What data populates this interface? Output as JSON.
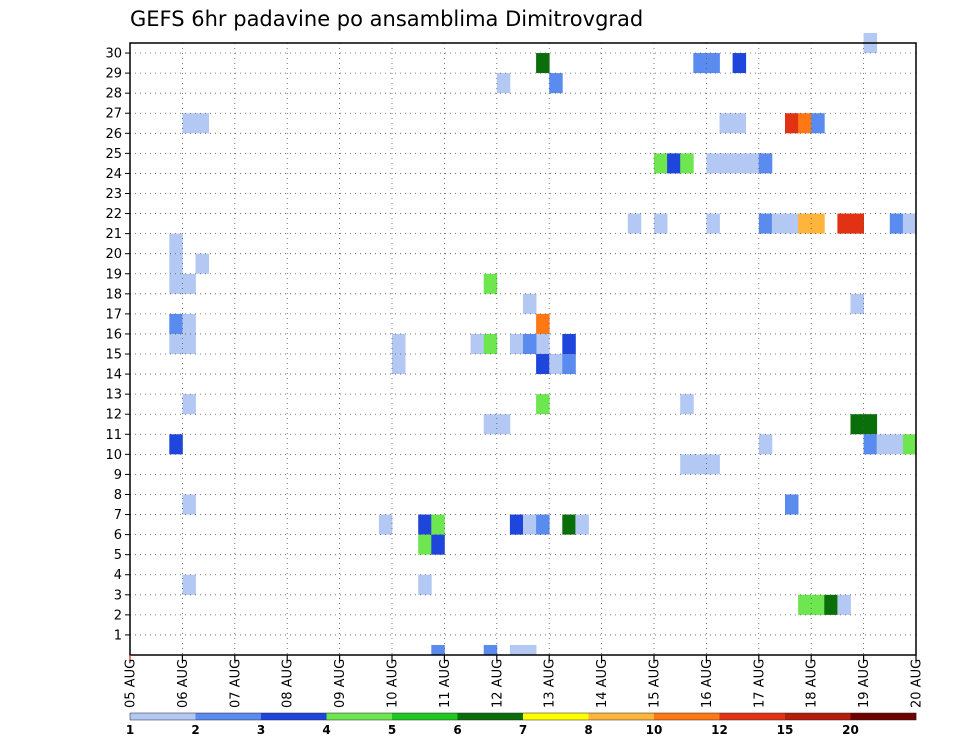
{
  "chart_data": {
    "type": "heatmap",
    "title": "GEFS 6hr padavine po ansamblima Dimitrovgrad",
    "xlabel": "",
    "ylabel": "",
    "x_ticks": [
      "05 AUG",
      "06 AUG",
      "07 AUG",
      "08 AUG",
      "09 AUG",
      "10 AUG",
      "11 AUG",
      "12 AUG",
      "13 AUG",
      "14 AUG",
      "15 AUG",
      "16 AUG",
      "17 AUG",
      "18 AUG",
      "19 AUG",
      "20 AUG"
    ],
    "y_ticks": [
      "1",
      "2",
      "3",
      "4",
      "5",
      "6",
      "7",
      "8",
      "9",
      "10",
      "11",
      "12",
      "13",
      "14",
      "15",
      "16",
      "17",
      "18",
      "19",
      "20",
      "21",
      "22",
      "23",
      "24",
      "25",
      "26",
      "27",
      "28",
      "29",
      "30"
    ],
    "y_range": [
      0,
      30
    ],
    "x_steps_per_day": 4,
    "grid": true,
    "legend": {
      "placement": "bottom",
      "labels": [
        "1",
        "2",
        "3",
        "4",
        "5",
        "6",
        "7",
        "8",
        "10",
        "12",
        "15",
        "20"
      ],
      "colors": [
        "#b4c8f4",
        "#5a8cf0",
        "#1e46dc",
        "#6ee650",
        "#1ec81e",
        "#0a6e0a",
        "#ffff00",
        "#ffb43c",
        "#ff7814",
        "#e13214",
        "#b41e0a",
        "#6e0000"
      ]
    },
    "cells": [
      {
        "step": 31,
        "member": 29,
        "level": 6
      },
      {
        "step": 43,
        "member": 29,
        "level": 2
      },
      {
        "step": 44,
        "member": 29,
        "level": 2
      },
      {
        "step": 46,
        "member": 29,
        "level": 3
      },
      {
        "step": 28,
        "member": 28,
        "level": 1
      },
      {
        "step": 32,
        "member": 28,
        "level": 2
      },
      {
        "step": 4,
        "member": 26,
        "level": 1
      },
      {
        "step": 5,
        "member": 26,
        "level": 1
      },
      {
        "step": 45,
        "member": 26,
        "level": 1
      },
      {
        "step": 46,
        "member": 26,
        "level": 1
      },
      {
        "step": 50,
        "member": 26,
        "level": 12
      },
      {
        "step": 51,
        "member": 26,
        "level": 10
      },
      {
        "step": 52,
        "member": 26,
        "level": 2
      },
      {
        "step": 40,
        "member": 24,
        "level": 4
      },
      {
        "step": 41,
        "member": 24,
        "level": 3
      },
      {
        "step": 42,
        "member": 24,
        "level": 4
      },
      {
        "step": 44,
        "member": 24,
        "level": 1
      },
      {
        "step": 45,
        "member": 24,
        "level": 1
      },
      {
        "step": 46,
        "member": 24,
        "level": 1
      },
      {
        "step": 47,
        "member": 24,
        "level": 1
      },
      {
        "step": 48,
        "member": 24,
        "level": 2
      },
      {
        "step": 38,
        "member": 21,
        "level": 1
      },
      {
        "step": 40,
        "member": 21,
        "level": 1
      },
      {
        "step": 44,
        "member": 21,
        "level": 1
      },
      {
        "step": 48,
        "member": 21,
        "level": 2
      },
      {
        "step": 49,
        "member": 21,
        "level": 1
      },
      {
        "step": 50,
        "member": 21,
        "level": 1
      },
      {
        "step": 51,
        "member": 21,
        "level": 8
      },
      {
        "step": 52,
        "member": 21,
        "level": 8
      },
      {
        "step": 54,
        "member": 21,
        "level": 12
      },
      {
        "step": 55,
        "member": 21,
        "level": 12
      },
      {
        "step": 58,
        "member": 21,
        "level": 2
      },
      {
        "step": 59,
        "member": 21,
        "level": 1
      },
      {
        "step": 3,
        "member": 20,
        "level": 1
      },
      {
        "step": 3,
        "member": 19,
        "level": 1
      },
      {
        "step": 5,
        "member": 19,
        "level": 1
      },
      {
        "step": 3,
        "member": 18,
        "level": 1
      },
      {
        "step": 4,
        "member": 18,
        "level": 1
      },
      {
        "step": 27,
        "member": 18,
        "level": 4
      },
      {
        "step": 30,
        "member": 17,
        "level": 1
      },
      {
        "step": 55,
        "member": 17,
        "level": 1
      },
      {
        "step": 3,
        "member": 16,
        "level": 2
      },
      {
        "step": 4,
        "member": 16,
        "level": 1
      },
      {
        "step": 31,
        "member": 16,
        "level": 10
      },
      {
        "step": 3,
        "member": 15,
        "level": 1
      },
      {
        "step": 4,
        "member": 15,
        "level": 1
      },
      {
        "step": 20,
        "member": 15,
        "level": 1
      },
      {
        "step": 31,
        "member": 15,
        "level": 1
      },
      {
        "step": 26,
        "member": 15,
        "level": 1
      },
      {
        "step": 27,
        "member": 15,
        "level": 4
      },
      {
        "step": 29,
        "member": 15,
        "level": 1
      },
      {
        "step": 30,
        "member": 15,
        "level": 2
      },
      {
        "step": 33,
        "member": 15,
        "level": 3
      },
      {
        "step": 20,
        "member": 14,
        "level": 1
      },
      {
        "step": 31,
        "member": 14,
        "level": 3
      },
      {
        "step": 32,
        "member": 14,
        "level": 1
      },
      {
        "step": 33,
        "member": 14,
        "level": 2
      },
      {
        "step": 4,
        "member": 12,
        "level": 1
      },
      {
        "step": 31,
        "member": 12,
        "level": 4
      },
      {
        "step": 42,
        "member": 12,
        "level": 1
      },
      {
        "step": 27,
        "member": 11,
        "level": 1
      },
      {
        "step": 28,
        "member": 11,
        "level": 1
      },
      {
        "step": 55,
        "member": 11,
        "level": 6
      },
      {
        "step": 56,
        "member": 11,
        "level": 6
      },
      {
        "step": 3,
        "member": 10,
        "level": 3
      },
      {
        "step": 48,
        "member": 10,
        "level": 1
      },
      {
        "step": 56,
        "member": 10,
        "level": 2
      },
      {
        "step": 57,
        "member": 10,
        "level": 1
      },
      {
        "step": 58,
        "member": 10,
        "level": 1
      },
      {
        "step": 59,
        "member": 10,
        "level": 4
      },
      {
        "step": 42,
        "member": 9,
        "level": 1
      },
      {
        "step": 43,
        "member": 9,
        "level": 1
      },
      {
        "step": 44,
        "member": 9,
        "level": 1
      },
      {
        "step": 4,
        "member": 7,
        "level": 1
      },
      {
        "step": 50,
        "member": 7,
        "level": 2
      },
      {
        "step": 19,
        "member": 6,
        "level": 1
      },
      {
        "step": 22,
        "member": 6,
        "level": 3
      },
      {
        "step": 23,
        "member": 6,
        "level": 4
      },
      {
        "step": 29,
        "member": 6,
        "level": 3
      },
      {
        "step": 30,
        "member": 6,
        "level": 1
      },
      {
        "step": 31,
        "member": 6,
        "level": 2
      },
      {
        "step": 33,
        "member": 6,
        "level": 6
      },
      {
        "step": 34,
        "member": 6,
        "level": 1
      },
      {
        "step": 22,
        "member": 5,
        "level": 4
      },
      {
        "step": 23,
        "member": 5,
        "level": 3
      },
      {
        "step": 4,
        "member": 3,
        "level": 1
      },
      {
        "step": 22,
        "member": 3,
        "level": 1
      },
      {
        "step": 51,
        "member": 2,
        "level": 4
      },
      {
        "step": 52,
        "member": 2,
        "level": 4
      },
      {
        "step": 53,
        "member": 2,
        "level": 6
      },
      {
        "step": 54,
        "member": 2,
        "level": 1
      },
      {
        "step": 23,
        "member": 0,
        "level": 2
      },
      {
        "step": 27,
        "member": 0,
        "level": 2
      },
      {
        "step": 29,
        "member": 0,
        "level": 1
      },
      {
        "step": 30,
        "member": 0,
        "level": 1
      },
      {
        "step": 56,
        "member": 30,
        "level": 1
      }
    ]
  }
}
